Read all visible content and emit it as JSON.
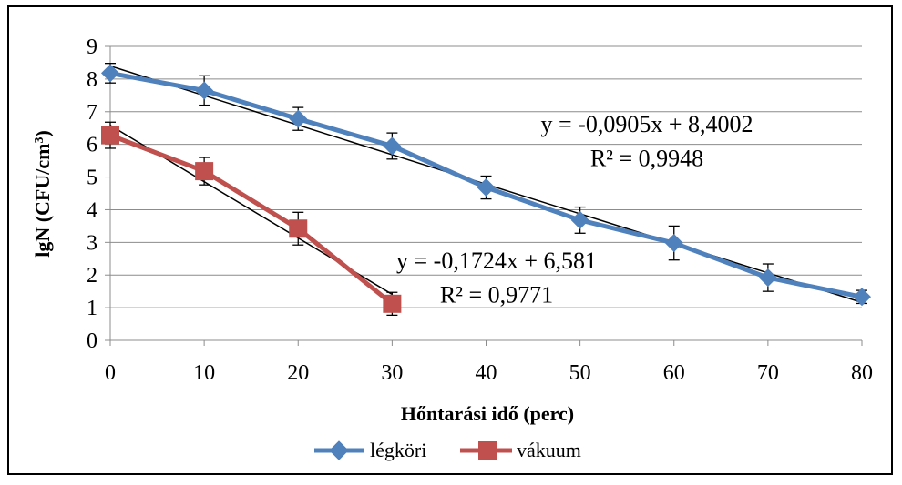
{
  "chart_data": {
    "type": "line",
    "title": "",
    "xlabel": "Hőntarási idő (perc)",
    "ylabel_main": "lgN (CFU/cm",
    "ylabel_sup": "3",
    "ylabel_close": ")",
    "xlim": [
      0,
      80
    ],
    "ylim": [
      0,
      9
    ],
    "xticks": [
      0,
      10,
      20,
      30,
      40,
      50,
      60,
      70,
      80
    ],
    "yticks": [
      0,
      1,
      2,
      3,
      4,
      5,
      6,
      7,
      8,
      9
    ],
    "grid": true,
    "legend_position": "bottom",
    "series": [
      {
        "name": "légköri",
        "color": "#4F81BD",
        "marker": "diamond",
        "x": [
          0,
          10,
          20,
          30,
          40,
          50,
          60,
          70,
          80
        ],
        "y": [
          8.18,
          7.65,
          6.78,
          5.95,
          4.68,
          3.68,
          2.98,
          1.92,
          1.33
        ],
        "err": [
          0.3,
          0.45,
          0.35,
          0.4,
          0.35,
          0.4,
          0.52,
          0.42,
          0.2
        ]
      },
      {
        "name": "vákuum",
        "color": "#C0504D",
        "marker": "square",
        "x": [
          0,
          10,
          20,
          30
        ],
        "y": [
          6.28,
          5.18,
          3.42,
          1.12
        ],
        "err": [
          0.4,
          0.42,
          0.5,
          0.35
        ]
      }
    ],
    "trendlines": [
      {
        "slope": -0.0905,
        "intercept": 8.4002,
        "x_range": [
          0,
          80
        ],
        "equation": "y = -0,0905x + 8,4002",
        "r2": "R² = 0,9948"
      },
      {
        "slope": -0.1724,
        "intercept": 6.581,
        "x_range": [
          0,
          30
        ],
        "equation": "y = -0,1724x + 6,581",
        "r2": "R² = 0,9771"
      }
    ]
  }
}
